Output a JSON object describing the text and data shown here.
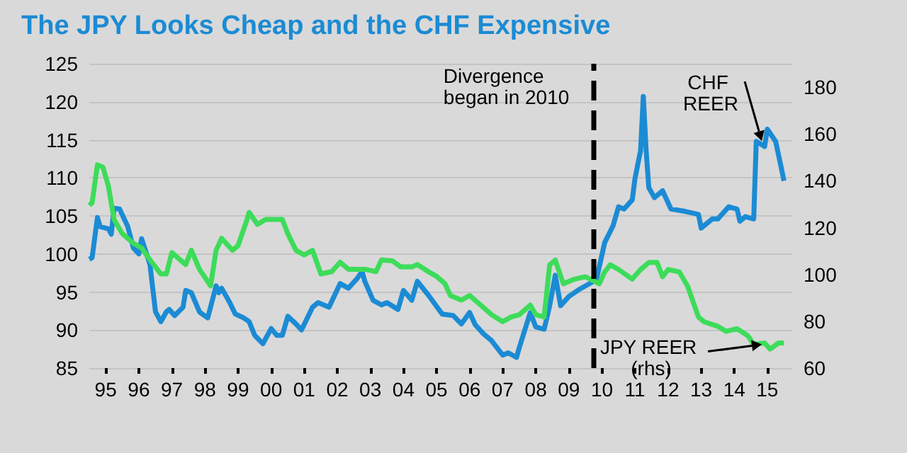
{
  "chart_data": {
    "type": "line",
    "title": "The JPY Looks Cheap and the CHF Expensive",
    "xlim": [
      "1995-01",
      "2016-04"
    ],
    "xticks": [
      {
        "value": "1995-07",
        "label": "95"
      },
      {
        "value": "1996-07",
        "label": "96"
      },
      {
        "value": "1997-07",
        "label": "97"
      },
      {
        "value": "1998-07",
        "label": "98"
      },
      {
        "value": "1999-07",
        "label": "99"
      },
      {
        "value": "2000-07",
        "label": "00"
      },
      {
        "value": "2001-07",
        "label": "01"
      },
      {
        "value": "2002-07",
        "label": "02"
      },
      {
        "value": "2003-07",
        "label": "03"
      },
      {
        "value": "2004-07",
        "label": "04"
      },
      {
        "value": "2005-07",
        "label": "05"
      },
      {
        "value": "2006-07",
        "label": "06"
      },
      {
        "value": "2007-07",
        "label": "07"
      },
      {
        "value": "2008-07",
        "label": "08"
      },
      {
        "value": "2009-07",
        "label": "09"
      },
      {
        "value": "2010-07",
        "label": "10"
      },
      {
        "value": "2011-07",
        "label": "11"
      },
      {
        "value": "2012-07",
        "label": "12"
      },
      {
        "value": "2013-07",
        "label": "13"
      },
      {
        "value": "2014-07",
        "label": "14"
      },
      {
        "value": "2015-07",
        "label": "15"
      }
    ],
    "ylim": [
      85,
      125
    ],
    "yticks": [
      85,
      90,
      95,
      100,
      105,
      110,
      115,
      120,
      125
    ],
    "y2lim": [
      60,
      190
    ],
    "y2ticks": [
      60,
      80,
      100,
      120,
      140,
      160,
      180
    ],
    "grid": "y",
    "marker": "none",
    "ref_lines": [
      {
        "axis": "x",
        "value": "2010-04",
        "label": "Divergence began in 2010",
        "color": "#000000",
        "line_style": "dashed"
      }
    ],
    "series": [
      {
        "name": "CHF REER",
        "color": "#1b8bd4",
        "x": [
          "1995-01",
          "1995-02",
          "1995-04",
          "1995-05",
          "1995-08",
          "1995-09",
          "1995-10",
          "1995-12",
          "1996-03",
          "1996-05",
          "1996-07",
          "1996-08",
          "1996-11",
          "1997-01",
          "1997-03",
          "1997-05",
          "1997-06",
          "1997-08",
          "1997-11",
          "1997-12",
          "1998-02",
          "1998-05",
          "1998-06",
          "1998-08",
          "1998-11",
          "1998-12",
          "1999-01",
          "1999-04",
          "1999-06",
          "1999-09",
          "1999-11",
          "2000-01",
          "2000-04",
          "2000-07",
          "2000-09",
          "2000-11",
          "2001-01",
          "2001-04",
          "2001-06",
          "2001-10",
          "2001-12",
          "2002-04",
          "2002-08",
          "2002-11",
          "2003-02",
          "2003-04",
          "2003-05",
          "2003-08",
          "2003-11",
          "2004-01",
          "2004-05",
          "2004-07",
          "2004-10",
          "2004-12",
          "2005-04",
          "2005-06",
          "2005-09",
          "2006-01",
          "2006-04",
          "2006-07",
          "2006-09",
          "2006-12",
          "2007-03",
          "2007-07",
          "2007-09",
          "2007-12",
          "2008-01",
          "2008-05",
          "2008-07",
          "2008-10",
          "2008-12",
          "2009-02",
          "2009-04",
          "2009-07",
          "2009-11",
          "2010-05",
          "2010-08",
          "2010-11",
          "2011-01",
          "2011-03",
          "2011-06",
          "2011-07",
          "2011-09",
          "2011-10",
          "2011-11",
          "2011-12",
          "2012-02",
          "2012-05",
          "2012-08",
          "2013-01",
          "2013-06",
          "2013-07",
          "2013-11",
          "2014-01",
          "2014-05",
          "2014-08",
          "2014-09",
          "2014-11",
          "2015-02",
          "2015-03",
          "2015-06",
          "2015-07",
          "2015-10",
          "2015-12",
          "2016-01"
        ],
        "values": [
          99.3,
          99.5,
          104.8,
          103.6,
          103.3,
          102.6,
          106,
          105.9,
          103.6,
          100.8,
          100,
          102,
          98.6,
          92.4,
          91.1,
          92.4,
          92.7,
          91.9,
          93,
          95.2,
          94.9,
          92.4,
          92.1,
          91.6,
          95.8,
          94.9,
          95.5,
          93.6,
          92.1,
          91.6,
          91.1,
          89.3,
          88.2,
          90.2,
          89.3,
          89.3,
          91.8,
          90.8,
          90,
          93,
          93.6,
          93,
          96.1,
          95.5,
          96.7,
          97.7,
          96.4,
          93.9,
          93.3,
          93.6,
          92.7,
          95.2,
          93.9,
          96.4,
          94.6,
          93.6,
          92.1,
          91.9,
          90.8,
          92.3,
          90.7,
          89.5,
          88.6,
          86.7,
          87,
          86.4,
          87.7,
          92.3,
          90.4,
          90.1,
          93.2,
          97.2,
          93.2,
          94.4,
          95.4,
          96.6,
          101.5,
          103.7,
          106.2,
          105.9,
          107.1,
          109.9,
          113.6,
          120.7,
          113.6,
          108.7,
          107.4,
          108.3,
          105.9,
          105.6,
          105.2,
          103.4,
          104.6,
          104.6,
          106.2,
          105.9,
          104.3,
          104.9,
          104.6,
          114.8,
          114.1,
          116.4,
          114.8,
          111.4,
          109.6
        ]
      },
      {
        "name": "JPY REER (rhs)",
        "color": "#3ddc5a",
        "axis": "y2",
        "x": [
          "1995-01",
          "1995-02",
          "1995-04",
          "1995-06",
          "1995-08",
          "1995-10",
          "1996-01",
          "1996-05",
          "1996-08",
          "1996-11",
          "1997-03",
          "1997-05",
          "1997-07",
          "1997-10",
          "1997-12",
          "1998-02",
          "1998-05",
          "1998-09",
          "1998-11",
          "1999-01",
          "1999-05",
          "1999-07",
          "1999-10",
          "1999-11",
          "2000-02",
          "2000-05",
          "2000-08",
          "2000-11",
          "2001-01",
          "2001-04",
          "2001-07",
          "2001-10",
          "2002-01",
          "2002-05",
          "2002-08",
          "2002-11",
          "2003-05",
          "2003-09",
          "2003-11",
          "2004-03",
          "2004-06",
          "2004-10",
          "2004-12",
          "2005-04",
          "2005-07",
          "2005-10",
          "2005-12",
          "2006-04",
          "2006-07",
          "2006-10",
          "2007-03",
          "2007-07",
          "2007-10",
          "2008-01",
          "2008-05",
          "2008-07",
          "2008-10",
          "2008-12",
          "2009-02",
          "2009-05",
          "2009-09",
          "2010-01",
          "2010-06",
          "2010-08",
          "2010-10",
          "2011-01",
          "2011-06",
          "2011-09",
          "2011-12",
          "2012-03",
          "2012-05",
          "2012-07",
          "2012-11",
          "2013-02",
          "2013-06",
          "2013-08",
          "2014-01",
          "2014-04",
          "2014-08",
          "2014-12",
          "2015-02",
          "2015-06",
          "2015-08",
          "2015-11",
          "2016-01"
        ],
        "values": [
          129.5,
          130.6,
          146.8,
          145.8,
          137.6,
          123.5,
          117.4,
          113.3,
          111.3,
          106.2,
          100.2,
          100.2,
          109.3,
          106.2,
          104.2,
          110.3,
          102.2,
          95.1,
          110.3,
          115.4,
          110.3,
          112.3,
          122.5,
          126.5,
          121.4,
          123.5,
          123.5,
          123.5,
          117.4,
          110.3,
          108.3,
          110.3,
          100.2,
          101.2,
          105.2,
          102.2,
          102.2,
          101.2,
          106.2,
          105.8,
          103.2,
          103.2,
          104.2,
          101.2,
          99.2,
          96.1,
          91,
          89,
          91,
          87.9,
          82.8,
          79.8,
          81.8,
          82.8,
          86.9,
          82.8,
          81.8,
          104.1,
          106.1,
          96,
          98,
          99,
          96,
          101.1,
          104.1,
          102.1,
          98,
          102.1,
          105.1,
          105.1,
          99,
          102.1,
          101.1,
          95,
          81.8,
          79.8,
          77.8,
          75.7,
          76.8,
          73.7,
          70.1,
          70.7,
          68.1,
          70.7,
          70.7
        ]
      }
    ]
  }
}
